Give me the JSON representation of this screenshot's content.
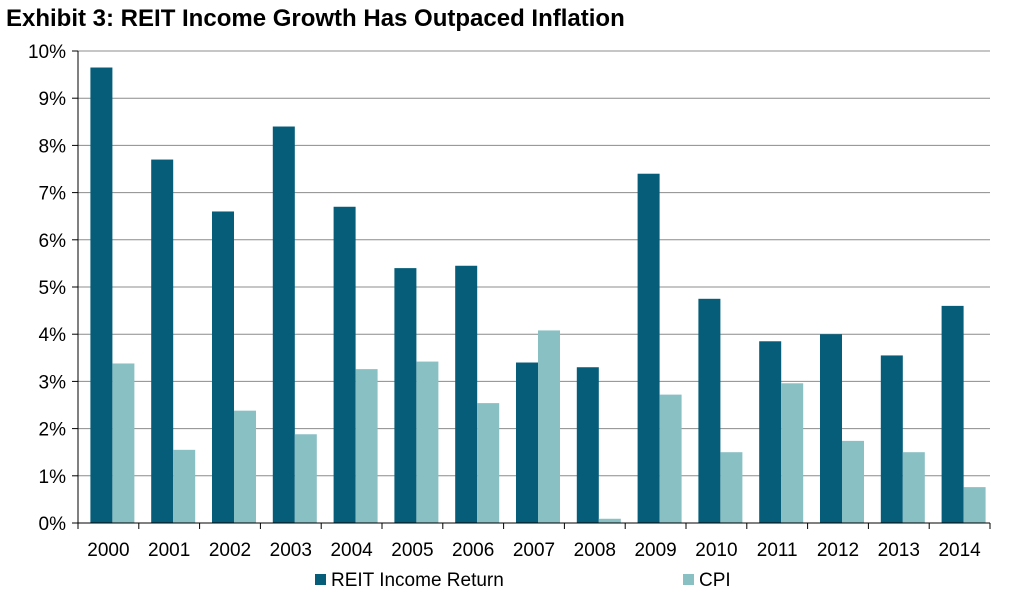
{
  "title": "Exhibit 3: REIT Income Growth Has Outpaced Inflation",
  "colors": {
    "reit": "#055d79",
    "cpi": "#89c0c4",
    "grid": "#8c8c8c",
    "axis": "#000000"
  },
  "chart_data": {
    "type": "bar",
    "title": "Exhibit 3: REIT Income Growth Has Outpaced Inflation",
    "xlabel": "",
    "ylabel": "",
    "ylim": [
      0,
      10
    ],
    "yticks": [
      "0%",
      "1%",
      "2%",
      "3%",
      "4%",
      "5%",
      "6%",
      "7%",
      "8%",
      "9%",
      "10%"
    ],
    "grid": true,
    "legend_position": "bottom",
    "categories": [
      "2000",
      "2001",
      "2002",
      "2003",
      "2004",
      "2005",
      "2006",
      "2007",
      "2008",
      "2009",
      "2010",
      "2011",
      "2012",
      "2013",
      "2014"
    ],
    "series": [
      {
        "name": "REIT Income Return",
        "color": "#055d79",
        "values": [
          9.65,
          7.7,
          6.6,
          8.4,
          6.7,
          5.4,
          5.45,
          3.4,
          3.3,
          7.4,
          4.75,
          3.85,
          4.0,
          3.55,
          4.6
        ]
      },
      {
        "name": "CPI",
        "color": "#89c0c4",
        "values": [
          3.38,
          1.55,
          2.38,
          1.88,
          3.26,
          3.42,
          2.54,
          4.08,
          0.09,
          2.72,
          1.5,
          2.96,
          1.74,
          1.5,
          0.76
        ]
      }
    ]
  }
}
